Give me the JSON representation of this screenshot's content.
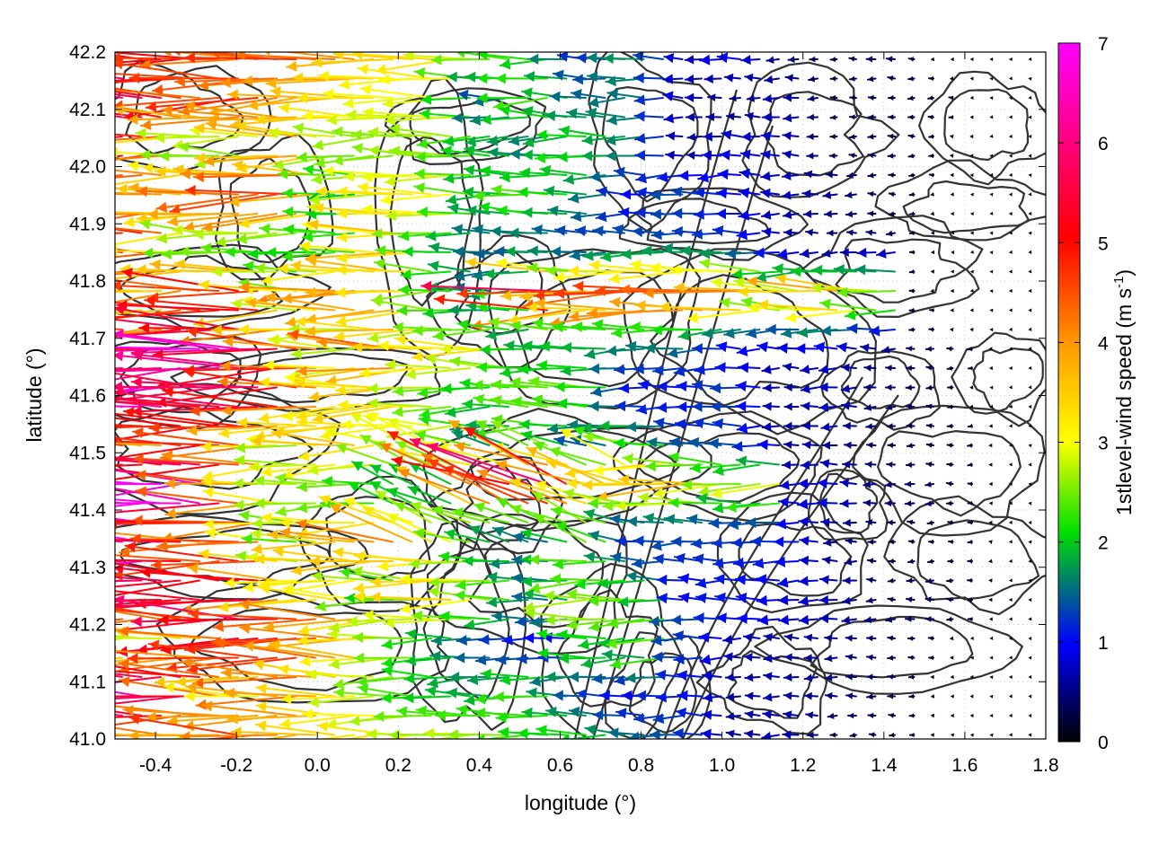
{
  "chart_data": {
    "type": "vector-field",
    "title": "",
    "xlabel": "longitude (°)",
    "ylabel": "latitude (°)",
    "colorbar_label": "1stlevel-wind speed (m s",
    "colorbar_label_sup": "-1",
    "colorbar_label_end": ")",
    "xlim": [
      -0.5,
      1.8
    ],
    "ylim": [
      41.0,
      42.2
    ],
    "x_ticks": [
      -0.4,
      -0.2,
      0.0,
      0.2,
      0.4,
      0.6,
      0.8,
      1.0,
      1.2,
      1.4,
      1.6,
      1.8
    ],
    "x_tick_labels": [
      "-0.4",
      "-0.2",
      "0.0",
      "0.2",
      "0.4",
      "0.6",
      "0.8",
      "1.0",
      "1.2",
      "1.4",
      "1.6",
      "1.8"
    ],
    "y_ticks": [
      41.0,
      41.1,
      41.2,
      41.3,
      41.4,
      41.5,
      41.6,
      41.7,
      41.8,
      41.9,
      42.0,
      42.1,
      42.2
    ],
    "y_tick_labels": [
      "41.0",
      "41.1",
      "41.2",
      "41.3",
      "41.4",
      "41.5",
      "41.6",
      "41.7",
      "41.8",
      "41.9",
      "42.0",
      "42.1",
      "42.2"
    ],
    "colorbar_range": [
      0,
      7
    ],
    "colorbar_ticks": [
      0,
      1,
      2,
      3,
      4,
      5,
      6,
      7
    ],
    "colorbar_tick_labels": [
      "0",
      "1",
      "2",
      "3",
      "4",
      "5",
      "6",
      "7"
    ],
    "colormap": [
      "#000000",
      "#0000ff",
      "#00e000",
      "#ffff00",
      "#ff9900",
      "#ff0000",
      "#ff00ff"
    ],
    "grid": true,
    "dominant_wind_direction": "westward",
    "contour_color": "#333333"
  }
}
